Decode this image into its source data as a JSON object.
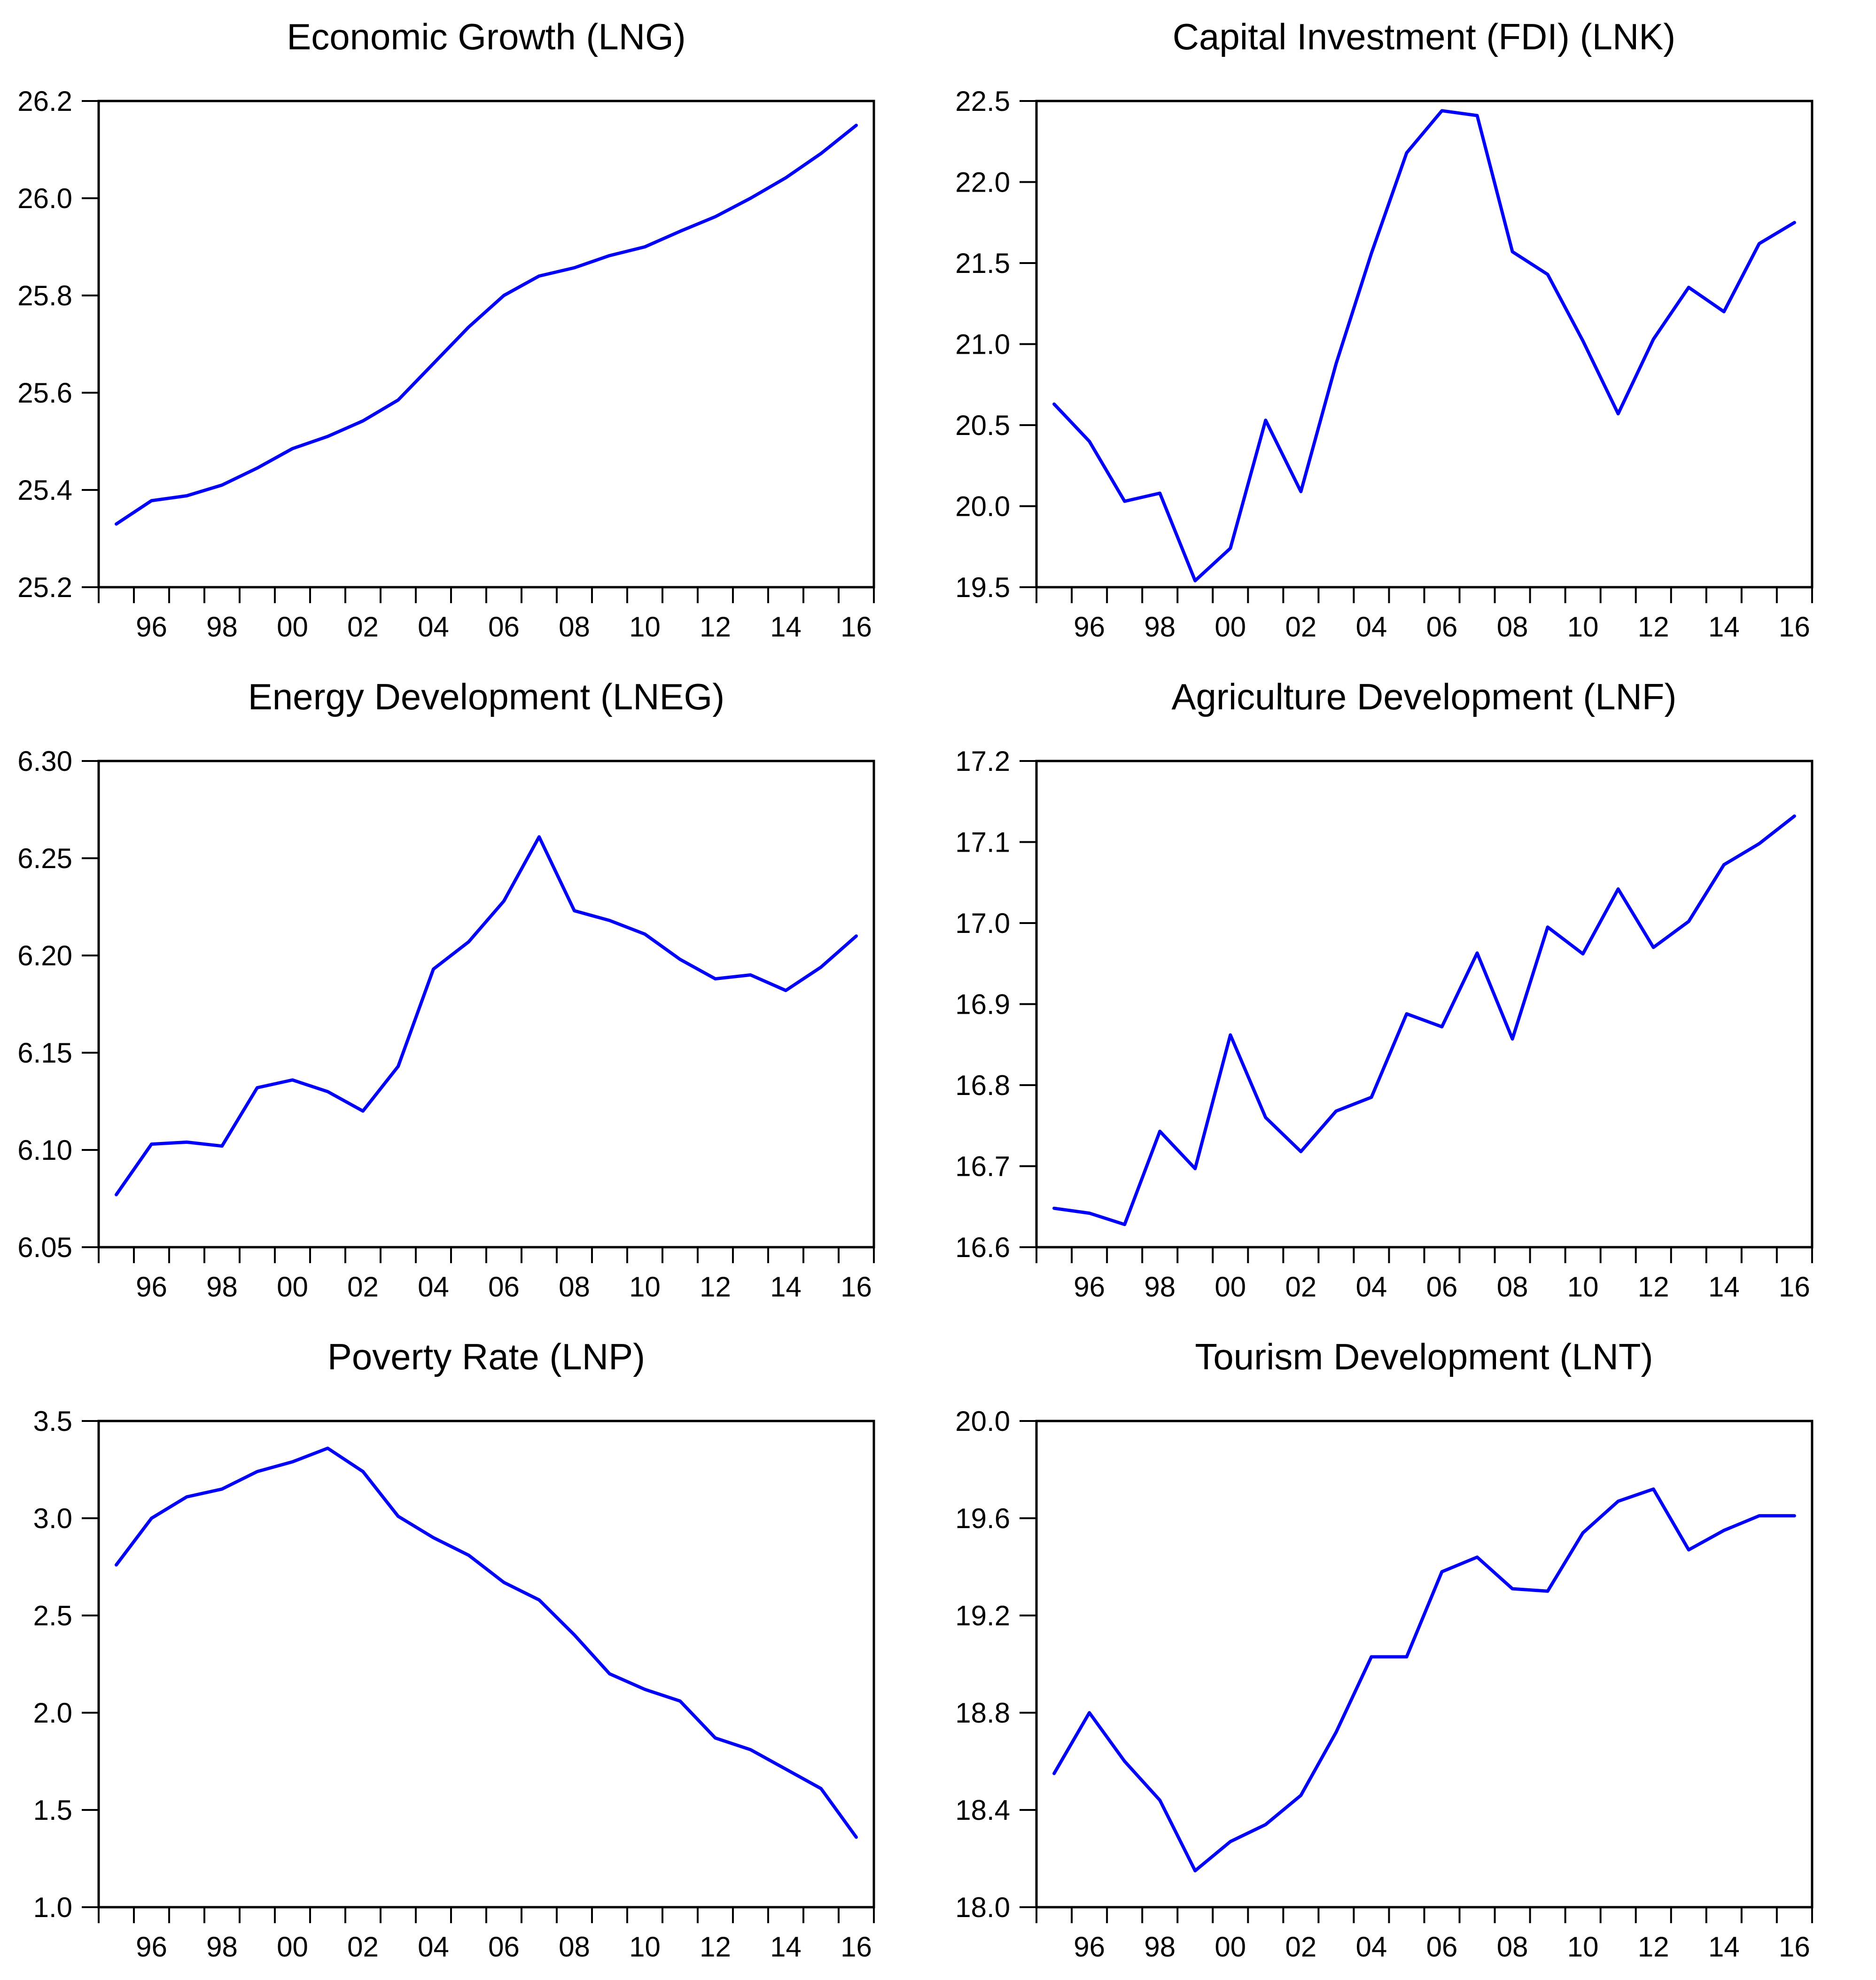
{
  "page": {
    "background": "#ffffff",
    "text_color": "#000000",
    "line_color": "#0000fb",
    "frame_color": "#000000"
  },
  "x_axis": {
    "years": [
      1995,
      1996,
      1997,
      1998,
      1999,
      2000,
      2001,
      2002,
      2003,
      2004,
      2005,
      2006,
      2007,
      2008,
      2009,
      2010,
      2011,
      2012,
      2013,
      2014,
      2015,
      2016
    ],
    "tick_labels": [
      "96",
      "98",
      "00",
      "02",
      "04",
      "06",
      "08",
      "10",
      "12",
      "14",
      "16"
    ],
    "tick_label_years": [
      1996,
      1998,
      2000,
      2002,
      2004,
      2006,
      2008,
      2010,
      2012,
      2014,
      2016
    ]
  },
  "chart_data": [
    {
      "type": "line",
      "title": "Economic Growth (LNG)",
      "xlabel": "",
      "ylabel": "",
      "grid": false,
      "legend": "none",
      "x": [
        1995,
        1996,
        1997,
        1998,
        1999,
        2000,
        2001,
        2002,
        2003,
        2004,
        2005,
        2006,
        2007,
        2008,
        2009,
        2010,
        2011,
        2012,
        2013,
        2014,
        2015,
        2016
      ],
      "values": [
        25.33,
        25.378,
        25.388,
        25.41,
        25.445,
        25.485,
        25.51,
        25.542,
        25.585,
        25.66,
        25.735,
        25.8,
        25.84,
        25.857,
        25.882,
        25.9,
        25.932,
        25.962,
        26.0,
        26.042,
        26.092,
        26.15
      ],
      "ylim": [
        25.2,
        26.2
      ],
      "yticks": [
        "25.2",
        "25.4",
        "25.6",
        "25.8",
        "26.0",
        "26.2"
      ]
    },
    {
      "type": "line",
      "title": "Capital Investment (FDI) (LNK)",
      "xlabel": "",
      "ylabel": "",
      "grid": false,
      "legend": "none",
      "x": [
        1995,
        1996,
        1997,
        1998,
        1999,
        2000,
        2001,
        2002,
        2003,
        2004,
        2005,
        2006,
        2007,
        2008,
        2009,
        2010,
        2011,
        2012,
        2013,
        2014,
        2015,
        2016
      ],
      "values": [
        20.63,
        20.4,
        20.03,
        20.08,
        19.54,
        19.74,
        20.53,
        20.09,
        20.88,
        21.56,
        22.18,
        22.44,
        22.41,
        21.57,
        21.43,
        21.02,
        20.57,
        21.03,
        21.35,
        21.2,
        21.62,
        21.75
      ],
      "ylim": [
        19.5,
        22.5
      ],
      "yticks": [
        "19.5",
        "20.0",
        "20.5",
        "21.0",
        "21.5",
        "22.0",
        "22.5"
      ]
    },
    {
      "type": "line",
      "title": "Energy Development (LNEG)",
      "xlabel": "",
      "ylabel": "",
      "grid": false,
      "legend": "none",
      "x": [
        1995,
        1996,
        1997,
        1998,
        1999,
        2000,
        2001,
        2002,
        2003,
        2004,
        2005,
        2006,
        2007,
        2008,
        2009,
        2010,
        2011,
        2012,
        2013,
        2014,
        2015,
        2016
      ],
      "values": [
        6.077,
        6.103,
        6.104,
        6.102,
        6.132,
        6.136,
        6.13,
        6.12,
        6.143,
        6.193,
        6.207,
        6.228,
        6.261,
        6.223,
        6.218,
        6.211,
        6.198,
        6.188,
        6.19,
        6.182,
        6.194,
        6.21
      ],
      "ylim": [
        6.05,
        6.3
      ],
      "yticks": [
        "6.05",
        "6.10",
        "6.15",
        "6.20",
        "6.25",
        "6.30"
      ]
    },
    {
      "type": "line",
      "title": "Agriculture Development (LNF)",
      "xlabel": "",
      "ylabel": "",
      "grid": false,
      "legend": "none",
      "x": [
        1995,
        1996,
        1997,
        1998,
        1999,
        2000,
        2001,
        2002,
        2003,
        2004,
        2005,
        2006,
        2007,
        2008,
        2009,
        2010,
        2011,
        2012,
        2013,
        2014,
        2015,
        2016
      ],
      "values": [
        16.648,
        16.642,
        16.628,
        16.743,
        16.697,
        16.862,
        16.76,
        16.718,
        16.768,
        16.785,
        16.888,
        16.872,
        16.963,
        16.857,
        16.995,
        16.962,
        17.042,
        16.97,
        17.002,
        17.072,
        17.098,
        17.132
      ],
      "ylim": [
        16.6,
        17.2
      ],
      "yticks": [
        "16.6",
        "16.7",
        "16.8",
        "16.9",
        "17.0",
        "17.1",
        "17.2"
      ]
    },
    {
      "type": "line",
      "title": "Poverty Rate (LNP)",
      "xlabel": "",
      "ylabel": "",
      "grid": false,
      "legend": "none",
      "x": [
        1995,
        1996,
        1997,
        1998,
        1999,
        2000,
        2001,
        2002,
        2003,
        2004,
        2005,
        2006,
        2007,
        2008,
        2009,
        2010,
        2011,
        2012,
        2013,
        2014,
        2015,
        2016
      ],
      "values": [
        2.76,
        3.0,
        3.11,
        3.15,
        3.24,
        3.29,
        3.36,
        3.24,
        3.01,
        2.9,
        2.81,
        2.67,
        2.58,
        2.4,
        2.2,
        2.12,
        2.06,
        1.87,
        1.81,
        1.71,
        1.61,
        1.36
      ],
      "ylim": [
        1.0,
        3.5
      ],
      "yticks": [
        "1.0",
        "1.5",
        "2.0",
        "2.5",
        "3.0",
        "3.5"
      ]
    },
    {
      "type": "line",
      "title": "Tourism Development (LNT)",
      "xlabel": "",
      "ylabel": "",
      "grid": false,
      "legend": "none",
      "x": [
        1995,
        1996,
        1997,
        1998,
        1999,
        2000,
        2001,
        2002,
        2003,
        2004,
        2005,
        2006,
        2007,
        2008,
        2009,
        2010,
        2011,
        2012,
        2013,
        2014,
        2015,
        2016
      ],
      "values": [
        18.55,
        18.8,
        18.6,
        18.44,
        18.15,
        18.27,
        18.34,
        18.46,
        18.72,
        19.03,
        19.03,
        19.38,
        19.44,
        19.31,
        19.3,
        19.54,
        19.67,
        19.72,
        19.47,
        19.55,
        19.61,
        19.61
      ],
      "ylim": [
        18.0,
        20.0
      ],
      "yticks": [
        "18.0",
        "18.4",
        "18.8",
        "19.2",
        "19.6",
        "20.0"
      ]
    }
  ]
}
